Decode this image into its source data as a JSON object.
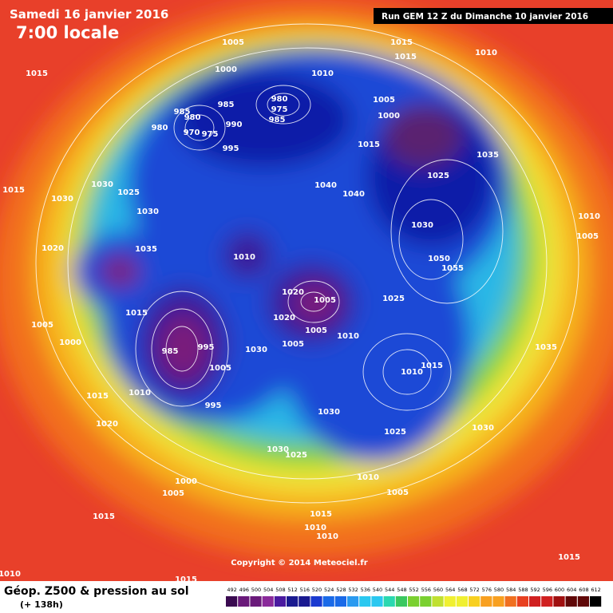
{
  "header": {
    "date": "Samedi 16 janvier 2016",
    "time": "7:00 locale",
    "run": "Run GEM 12 Z du Dimanche 10 janvier 2016"
  },
  "map": {
    "isobar_labels": [
      "1005",
      "1015",
      "1015",
      "1010",
      "1015",
      "1000",
      "1010",
      "980",
      "975",
      "985",
      "985",
      "985",
      "980",
      "990",
      "980",
      "970",
      "975",
      "995",
      "1005",
      "1000",
      "1015",
      "1035",
      "1025",
      "1015",
      "1030",
      "1025",
      "1030",
      "1030",
      "1040",
      "1040",
      "1010",
      "1030",
      "1005",
      "1035",
      "1020",
      "1010",
      "1050",
      "1055",
      "1020",
      "1005",
      "1025",
      "1015",
      "1020",
      "1005",
      "1010",
      "1005",
      "1000",
      "1005",
      "1030",
      "985",
      "995",
      "1010",
      "1015",
      "1035",
      "1005",
      "1015",
      "1010",
      "995",
      "1030",
      "1025",
      "1030",
      "1020",
      "1030",
      "1025",
      "1000",
      "1005",
      "1010",
      "1005",
      "1015",
      "1015",
      "1010",
      "1010",
      "1015",
      "1010",
      "1015"
    ],
    "copyright": "Copyright © 2014 Meteociel.fr"
  },
  "footer": {
    "title": "Géop. Z500 & pression au sol",
    "lead": "(+ 138h)"
  },
  "colorbar": {
    "ticks": [
      492,
      496,
      500,
      504,
      508,
      512,
      516,
      520,
      524,
      528,
      532,
      536,
      540,
      544,
      548,
      552,
      556,
      560,
      564,
      568,
      572,
      576,
      580,
      584,
      588,
      592,
      596,
      600,
      604,
      608,
      612
    ]
  }
}
